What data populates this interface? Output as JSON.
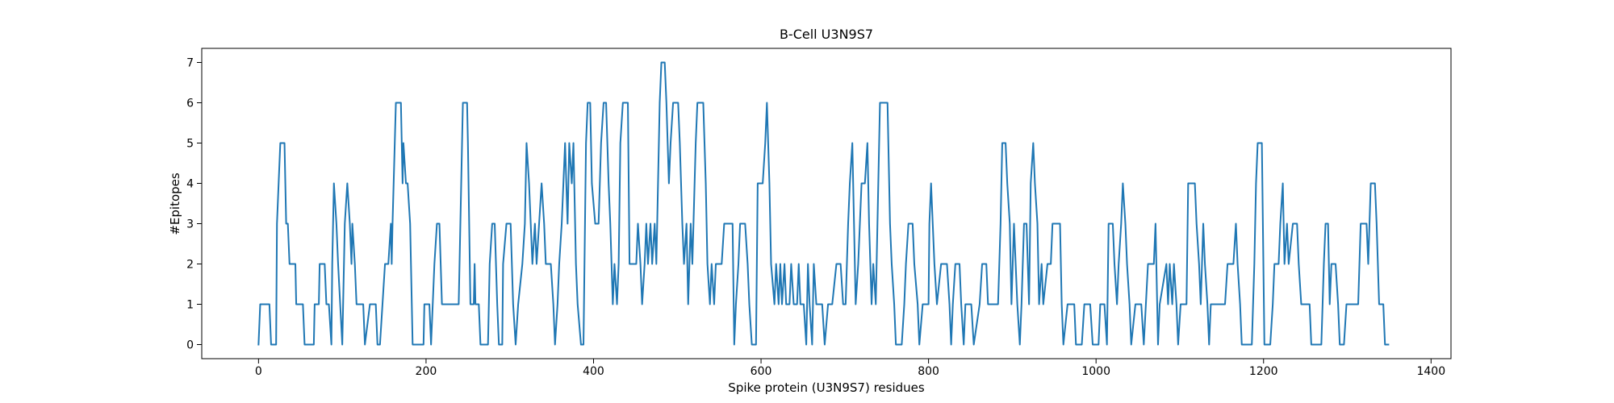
{
  "chart_data": {
    "type": "line",
    "title": "B-Cell U3N9S7",
    "x_label": "Spike protein (U3N9S7) residues",
    "y_label": "#Epitopes",
    "color": "#1f77b4",
    "xlim": [
      -67.8,
      1423.8
    ],
    "ylim": [
      -0.35,
      7.35
    ],
    "xticks": [
      0,
      200,
      400,
      600,
      800,
      1000,
      1200,
      1400
    ],
    "yticks": [
      0,
      1,
      2,
      3,
      4,
      5,
      6,
      7
    ],
    "grid": false,
    "x": [
      0,
      2,
      13,
      15,
      21,
      22,
      24,
      26,
      31,
      32,
      33,
      35,
      37,
      44,
      45,
      53,
      55,
      66,
      67,
      72,
      73,
      79,
      81,
      84,
      87,
      88,
      90,
      93,
      95,
      100,
      103,
      106,
      109,
      111,
      112,
      115,
      117,
      125,
      127,
      133,
      140,
      142,
      145,
      148,
      151,
      155,
      158,
      159,
      160,
      164,
      170,
      172,
      173,
      176,
      178,
      181,
      183,
      184,
      197,
      198,
      204,
      206,
      210,
      213,
      216,
      219,
      239,
      242,
      244,
      249,
      250,
      253,
      257,
      258,
      259,
      263,
      265,
      274,
      276,
      279,
      282,
      285,
      287,
      291,
      292,
      296,
      301,
      304,
      307,
      310,
      315,
      318,
      320,
      323,
      325,
      327,
      330,
      332,
      335,
      338,
      341,
      343,
      349,
      352,
      354,
      357,
      359,
      362,
      364,
      366,
      369,
      371,
      374,
      376,
      379,
      381,
      385,
      388,
      391,
      393,
      396,
      398,
      402,
      406,
      409,
      412,
      415,
      418,
      420,
      423,
      425,
      428,
      430,
      432,
      435,
      441,
      443,
      451,
      453,
      456,
      458,
      461,
      463,
      465,
      468,
      470,
      473,
      475,
      479,
      481,
      485,
      487,
      490,
      492,
      495,
      501,
      503,
      506,
      508,
      511,
      513,
      516,
      518,
      522,
      524,
      531,
      534,
      536,
      539,
      541,
      544,
      546,
      553,
      556,
      566,
      568,
      570,
      573,
      575,
      581,
      584,
      586,
      589,
      594,
      596,
      602,
      605,
      607,
      610,
      612,
      616,
      618,
      621,
      623,
      625,
      628,
      630,
      634,
      636,
      639,
      643,
      645,
      647,
      651,
      654,
      656,
      658,
      661,
      663,
      666,
      673,
      676,
      680,
      685,
      690,
      695,
      698,
      701,
      704,
      706,
      709,
      711,
      713,
      716,
      720,
      724,
      727,
      729,
      732,
      734,
      737,
      739,
      742,
      751,
      754,
      756,
      759,
      761,
      768,
      771,
      773,
      776,
      781,
      783,
      787,
      789,
      793,
      800,
      801,
      803,
      805,
      807,
      810,
      815,
      822,
      825,
      827,
      829,
      832,
      837,
      839,
      842,
      844,
      851,
      854,
      861,
      864,
      869,
      871,
      883,
      886,
      888,
      892,
      894,
      897,
      899,
      902,
      904,
      906,
      909,
      911,
      914,
      917,
      920,
      922,
      925,
      927,
      930,
      932,
      935,
      937,
      942,
      946,
      948,
      957,
      959,
      961,
      966,
      974,
      976,
      983,
      986,
      993,
      996,
      1003,
      1005,
      1010,
      1013,
      1015,
      1020,
      1022,
      1025,
      1027,
      1030,
      1032,
      1035,
      1037,
      1040,
      1042,
      1047,
      1054,
      1057,
      1062,
      1069,
      1071,
      1074,
      1076,
      1084,
      1086,
      1088,
      1091,
      1093,
      1096,
      1098,
      1101,
      1108,
      1110,
      1118,
      1120,
      1123,
      1125,
      1128,
      1130,
      1133,
      1135,
      1137,
      1154,
      1157,
      1164,
      1167,
      1169,
      1172,
      1174,
      1186,
      1189,
      1191,
      1193,
      1198,
      1201,
      1208,
      1211,
      1213,
      1218,
      1220,
      1223,
      1225,
      1228,
      1230,
      1235,
      1240,
      1242,
      1245,
      1255,
      1257,
      1269,
      1272,
      1274,
      1277,
      1279,
      1281,
      1286,
      1289,
      1291,
      1296,
      1299,
      1313,
      1316,
      1323,
      1325,
      1328,
      1333,
      1335,
      1338,
      1343,
      1345,
      1349
    ],
    "values": [
      0,
      1,
      1,
      0,
      0,
      3,
      4,
      5,
      5,
      4,
      3,
      3,
      2,
      2,
      1,
      1,
      0,
      0,
      1,
      1,
      2,
      2,
      1,
      1,
      0,
      2,
      4,
      3,
      2,
      0,
      3,
      4,
      3,
      2,
      3,
      2,
      1,
      1,
      0,
      1,
      1,
      0,
      0,
      1,
      2,
      2,
      3,
      2,
      3,
      6,
      6,
      4,
      5,
      4,
      4,
      3,
      1,
      0,
      0,
      1,
      1,
      0,
      2,
      3,
      3,
      1,
      1,
      4,
      6,
      6,
      5,
      1,
      1,
      2,
      1,
      1,
      0,
      0,
      2,
      3,
      3,
      1,
      0,
      0,
      2,
      3,
      3,
      1,
      0,
      1,
      2,
      3,
      5,
      4,
      3,
      2,
      3,
      2,
      3,
      4,
      3,
      2,
      2,
      1,
      0,
      1,
      2,
      3,
      4,
      5,
      3,
      5,
      4,
      5,
      2,
      1,
      0,
      0,
      5,
      6,
      6,
      4,
      3,
      3,
      5,
      6,
      6,
      4,
      3,
      1,
      2,
      1,
      2,
      5,
      6,
      6,
      2,
      2,
      3,
      2,
      1,
      2,
      3,
      2,
      3,
      2,
      3,
      2,
      6,
      7,
      7,
      6,
      4,
      5,
      6,
      6,
      5,
      3,
      2,
      3,
      1,
      3,
      2,
      5,
      6,
      6,
      4,
      2,
      1,
      2,
      1,
      2,
      2,
      3,
      3,
      0,
      1,
      2,
      3,
      3,
      2,
      1,
      0,
      0,
      4,
      4,
      5,
      6,
      4,
      2,
      1,
      2,
      1,
      2,
      1,
      2,
      1,
      1,
      2,
      1,
      1,
      2,
      1,
      1,
      0,
      2,
      1,
      0,
      2,
      1,
      1,
      0,
      1,
      1,
      2,
      2,
      1,
      1,
      3,
      4,
      5,
      3,
      1,
      2,
      4,
      4,
      5,
      3,
      1,
      2,
      1,
      3,
      6,
      6,
      3,
      2,
      1,
      0,
      0,
      1,
      2,
      3,
      3,
      2,
      1,
      0,
      1,
      1,
      3,
      4,
      3,
      2,
      1,
      2,
      2,
      1,
      0,
      1,
      2,
      2,
      1,
      0,
      1,
      1,
      0,
      1,
      2,
      2,
      1,
      1,
      3,
      5,
      5,
      4,
      3,
      1,
      3,
      2,
      1,
      0,
      1,
      3,
      3,
      1,
      4,
      5,
      4,
      3,
      1,
      2,
      1,
      2,
      2,
      3,
      3,
      1,
      0,
      1,
      1,
      0,
      0,
      1,
      1,
      0,
      0,
      1,
      1,
      0,
      3,
      3,
      2,
      1,
      2,
      3,
      4,
      3,
      2,
      1,
      0,
      1,
      1,
      0,
      2,
      2,
      3,
      0,
      1,
      2,
      1,
      2,
      1,
      2,
      1,
      0,
      1,
      1,
      4,
      4,
      3,
      2,
      1,
      3,
      2,
      1,
      0,
      1,
      1,
      2,
      2,
      3,
      2,
      1,
      0,
      0,
      2,
      4,
      5,
      5,
      0,
      0,
      1,
      2,
      2,
      3,
      4,
      2,
      3,
      2,
      3,
      3,
      2,
      1,
      1,
      0,
      0,
      2,
      3,
      3,
      1,
      2,
      2,
      1,
      0,
      0,
      1,
      1,
      3,
      3,
      2,
      4,
      4,
      3,
      1,
      1,
      0,
      0
    ]
  }
}
